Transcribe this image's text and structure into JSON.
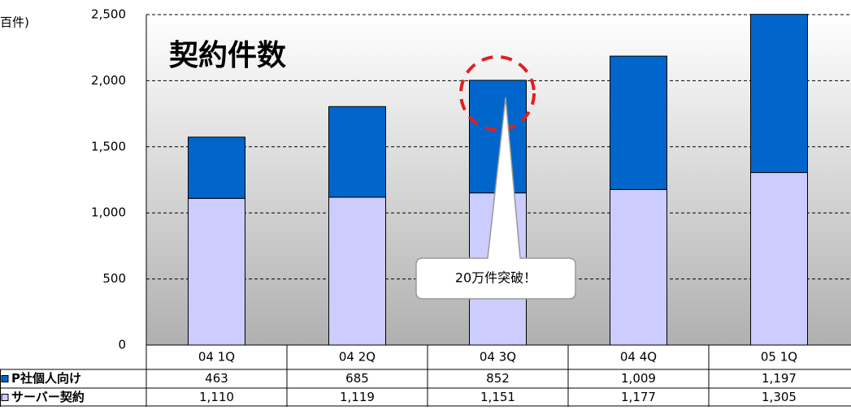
{
  "chart_data": {
    "type": "bar",
    "stacked": true,
    "title": "契約件数",
    "y_label": "百件)",
    "annotation": "20万件突破！",
    "categories": [
      "04 1Q",
      "04 2Q",
      "04 3Q",
      "04 4Q",
      "05 1Q"
    ],
    "series": [
      {
        "name": "サーバー契約",
        "color": "#ccccff",
        "values": [
          1110,
          1119,
          1151,
          1177,
          1305
        ]
      },
      {
        "name": "P社個人向け",
        "color": "#0066cc",
        "values": [
          463,
          685,
          852,
          1009,
          1197
        ]
      }
    ],
    "ylim": [
      0,
      2500
    ],
    "yticks": [
      0,
      500,
      {
        "value": 1000,
        "label": "1,000"
      },
      {
        "value": 1500,
        "label": "1,500"
      },
      {
        "value": 2000,
        "label": "2,000"
      },
      {
        "value": 2500,
        "label": "2,500"
      }
    ],
    "value_labels": [
      [
        "1,110",
        "1,119",
        "1,151",
        "1,177",
        "1,305"
      ],
      [
        "463",
        "685",
        "852",
        "1,009",
        "1,197"
      ]
    ],
    "grid": true
  }
}
